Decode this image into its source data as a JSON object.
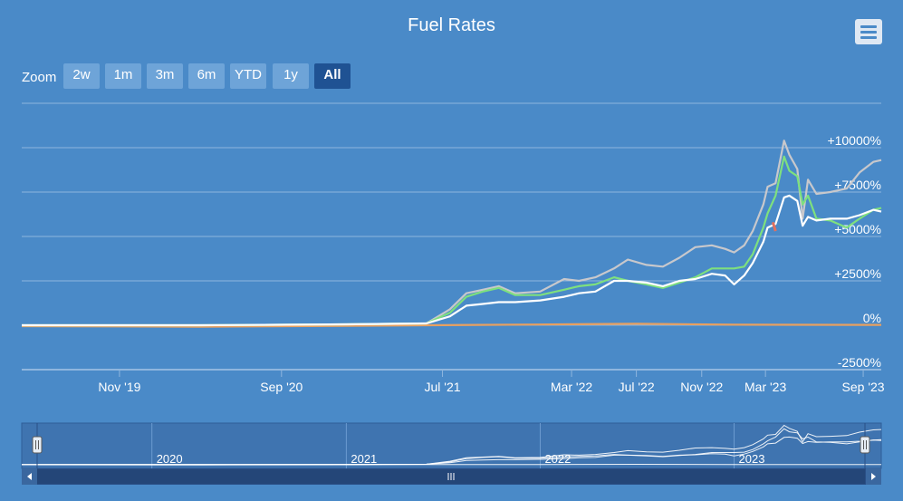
{
  "header": {
    "title": "Fuel Rates"
  },
  "menu": {
    "icon": "hamburger-icon"
  },
  "zoom": {
    "label": "Zoom",
    "buttons": [
      "2w",
      "1m",
      "3m",
      "6m",
      "YTD",
      "1y",
      "All"
    ],
    "active": "All"
  },
  "navigator": {
    "years": [
      "2020",
      "2021",
      "2022",
      "2023"
    ],
    "handle_icon": "grip-icon",
    "left_arrow_icon": "arrow-left-icon",
    "right_arrow_icon": "arrow-right-icon"
  },
  "colors": {
    "background": "#4a8ac8",
    "gridline": "#8fb6de",
    "series_gray": "#c8c8cc",
    "series_green": "#7ee07e",
    "series_white": "#ffffff",
    "series_orange": "#e8a060",
    "button": "#6ea4d8",
    "button_active": "#1f5293",
    "navigator_mask": "#3f74b0",
    "scrollbar": "#2a4f86"
  },
  "chart_data": {
    "type": "line",
    "title": "Fuel Rates",
    "x_tick_labels": [
      "Nov '19",
      "Sep '20",
      "Jul '21",
      "Mar '22",
      "Jul '22",
      "Nov '22",
      "Mar '23",
      "Sep '23"
    ],
    "y_tick_labels": [
      "-2500%",
      "0%",
      "+2500%",
      "+5000%",
      "+7500%",
      "+10000%"
    ],
    "ylim": [
      -2500,
      12500
    ],
    "ylabel": "",
    "xlabel": "",
    "y_axis_side": "right",
    "grid": true,
    "series": [
      {
        "color": "#c8c8cc",
        "points": [
          [
            "2019-05-01",
            0
          ],
          [
            "2020-04-01",
            0
          ],
          [
            "2021-01-01",
            50
          ],
          [
            "2021-06-01",
            100
          ],
          [
            "2021-07-15",
            900
          ],
          [
            "2021-08-15",
            1800
          ],
          [
            "2021-09-15",
            2000
          ],
          [
            "2021-10-15",
            2200
          ],
          [
            "2021-11-15",
            1800
          ],
          [
            "2022-01-01",
            1900
          ],
          [
            "2022-02-15",
            2600
          ],
          [
            "2022-03-15",
            2500
          ],
          [
            "2022-04-15",
            2700
          ],
          [
            "2022-05-20",
            3200
          ],
          [
            "2022-06-15",
            3700
          ],
          [
            "2022-07-20",
            3400
          ],
          [
            "2022-08-20",
            3300
          ],
          [
            "2022-09-20",
            3800
          ],
          [
            "2022-10-20",
            4400
          ],
          [
            "2022-11-20",
            4500
          ],
          [
            "2022-12-15",
            4300
          ],
          [
            "2023-01-01",
            4100
          ],
          [
            "2023-01-20",
            4500
          ],
          [
            "2023-02-05",
            5300
          ],
          [
            "2023-02-25",
            6800
          ],
          [
            "2023-03-05",
            7800
          ],
          [
            "2023-03-20",
            8000
          ],
          [
            "2023-04-05",
            10400
          ],
          [
            "2023-04-15",
            9600
          ],
          [
            "2023-04-30",
            8800
          ],
          [
            "2023-05-10",
            6000
          ],
          [
            "2023-05-20",
            8200
          ],
          [
            "2023-06-05",
            7400
          ],
          [
            "2023-07-01",
            7500
          ],
          [
            "2023-08-01",
            7700
          ],
          [
            "2023-08-25",
            8600
          ],
          [
            "2023-09-20",
            9200
          ],
          [
            "2023-10-05",
            9300
          ]
        ]
      },
      {
        "color": "#7ee07e",
        "points": [
          [
            "2019-05-01",
            0
          ],
          [
            "2020-04-01",
            0
          ],
          [
            "2021-01-01",
            50
          ],
          [
            "2021-06-01",
            100
          ],
          [
            "2021-07-15",
            700
          ],
          [
            "2021-08-15",
            1600
          ],
          [
            "2021-09-15",
            1900
          ],
          [
            "2021-10-15",
            2100
          ],
          [
            "2021-11-15",
            1700
          ],
          [
            "2022-01-01",
            1700
          ],
          [
            "2022-02-15",
            2000
          ],
          [
            "2022-03-15",
            2200
          ],
          [
            "2022-04-15",
            2300
          ],
          [
            "2022-05-20",
            2700
          ],
          [
            "2022-06-15",
            2500
          ],
          [
            "2022-07-20",
            2300
          ],
          [
            "2022-08-20",
            2100
          ],
          [
            "2022-09-20",
            2400
          ],
          [
            "2022-10-20",
            2700
          ],
          [
            "2022-11-20",
            3200
          ],
          [
            "2022-12-15",
            3200
          ],
          [
            "2023-01-01",
            3200
          ],
          [
            "2023-01-20",
            3300
          ],
          [
            "2023-02-05",
            4000
          ],
          [
            "2023-02-25",
            5500
          ],
          [
            "2023-03-05",
            6300
          ],
          [
            "2023-03-20",
            7300
          ],
          [
            "2023-04-05",
            9500
          ],
          [
            "2023-04-15",
            8700
          ],
          [
            "2023-04-30",
            8400
          ],
          [
            "2023-05-10",
            6800
          ],
          [
            "2023-05-20",
            7300
          ],
          [
            "2023-06-05",
            6000
          ],
          [
            "2023-07-01",
            5900
          ],
          [
            "2023-08-01",
            5500
          ],
          [
            "2023-08-25",
            6000
          ],
          [
            "2023-09-20",
            6500
          ],
          [
            "2023-10-05",
            6600
          ]
        ]
      },
      {
        "color": "#ffffff",
        "points": [
          [
            "2019-05-01",
            0
          ],
          [
            "2020-04-01",
            0
          ],
          [
            "2021-01-01",
            50
          ],
          [
            "2021-06-01",
            100
          ],
          [
            "2021-07-15",
            500
          ],
          [
            "2021-08-15",
            1100
          ],
          [
            "2021-09-15",
            1200
          ],
          [
            "2021-10-15",
            1300
          ],
          [
            "2021-11-15",
            1300
          ],
          [
            "2022-01-01",
            1400
          ],
          [
            "2022-02-15",
            1600
          ],
          [
            "2022-03-15",
            1800
          ],
          [
            "2022-04-15",
            1900
          ],
          [
            "2022-05-20",
            2500
          ],
          [
            "2022-06-15",
            2500
          ],
          [
            "2022-07-20",
            2400
          ],
          [
            "2022-08-20",
            2200
          ],
          [
            "2022-09-20",
            2500
          ],
          [
            "2022-10-20",
            2600
          ],
          [
            "2022-11-20",
            2900
          ],
          [
            "2022-12-15",
            2800
          ],
          [
            "2023-01-01",
            2300
          ],
          [
            "2023-01-20",
            2800
          ],
          [
            "2023-02-05",
            3500
          ],
          [
            "2023-02-25",
            4700
          ],
          [
            "2023-03-05",
            5500
          ],
          [
            "2023-03-20",
            5700
          ],
          [
            "2023-04-05",
            7200
          ],
          [
            "2023-04-15",
            7300
          ],
          [
            "2023-04-30",
            7000
          ],
          [
            "2023-05-10",
            5600
          ],
          [
            "2023-05-20",
            6100
          ],
          [
            "2023-06-05",
            5900
          ],
          [
            "2023-07-01",
            6000
          ],
          [
            "2023-08-01",
            6000
          ],
          [
            "2023-08-25",
            6200
          ],
          [
            "2023-09-20",
            6500
          ],
          [
            "2023-10-05",
            6400
          ]
        ]
      },
      {
        "color": "#e8a060",
        "points": [
          [
            "2019-05-01",
            -50
          ],
          [
            "2020-04-01",
            -80
          ],
          [
            "2021-01-01",
            -30
          ],
          [
            "2021-06-01",
            0
          ],
          [
            "2022-01-01",
            40
          ],
          [
            "2022-07-01",
            80
          ],
          [
            "2023-01-01",
            30
          ],
          [
            "2023-10-05",
            20
          ]
        ]
      },
      {
        "color": "#e07060",
        "points": [
          [
            "2023-03-15",
            5800
          ],
          [
            "2023-03-20",
            5300
          ]
        ]
      }
    ]
  }
}
